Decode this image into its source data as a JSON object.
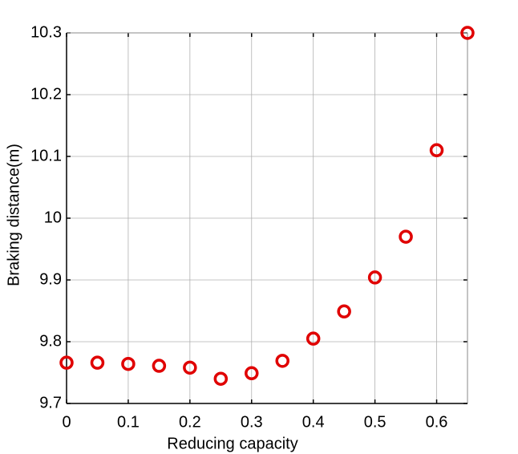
{
  "chart_data": {
    "type": "scatter",
    "x_label": "Reducing capacity",
    "y_label": "Braking distance(m)",
    "x": [
      0,
      0.05,
      0.1,
      0.15,
      0.2,
      0.25,
      0.3,
      0.35,
      0.4,
      0.45,
      0.5,
      0.55,
      0.6,
      0.65
    ],
    "series": [
      {
        "name": "Braking distance",
        "color": "#e00000",
        "values": [
          9.766,
          9.766,
          9.764,
          9.761,
          9.758,
          9.74,
          9.749,
          9.769,
          9.805,
          9.849,
          9.904,
          9.97,
          10.11,
          10.3
        ]
      }
    ],
    "xlim": [
      0,
      0.65
    ],
    "ylim": [
      9.7,
      10.3
    ],
    "xticks": [
      0,
      0.1,
      0.2,
      0.3,
      0.4,
      0.5,
      0.6
    ],
    "yticks": [
      9.7,
      9.8,
      9.9,
      10,
      10.1,
      10.2,
      10.3
    ],
    "grid": true
  }
}
